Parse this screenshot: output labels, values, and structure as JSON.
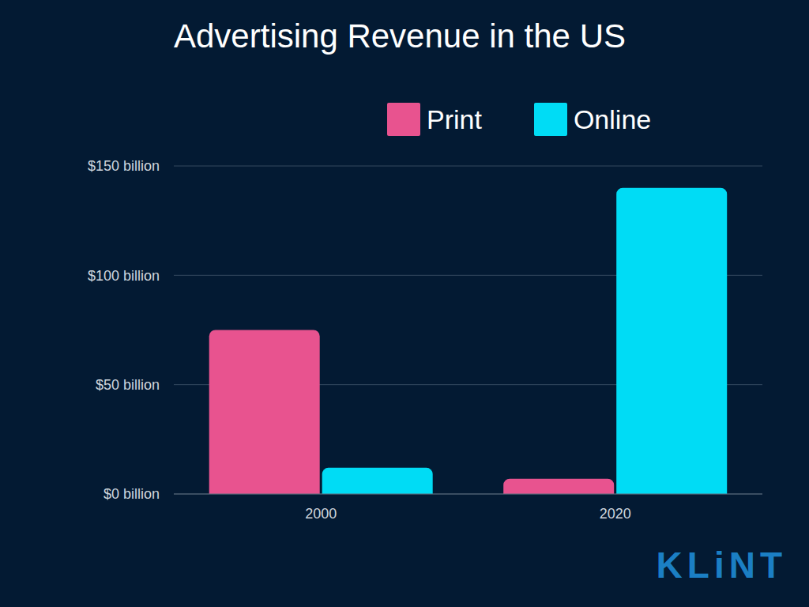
{
  "chart_data": {
    "type": "bar",
    "title": "Advertising Revenue in the US",
    "categories": [
      "2000",
      "2020"
    ],
    "series": [
      {
        "name": "Print",
        "color": "#e8538f",
        "values": [
          75,
          7
        ]
      },
      {
        "name": "Online",
        "color": "#00dcf5",
        "values": [
          12,
          140
        ]
      }
    ],
    "ylim": [
      0,
      150
    ],
    "yticks": [
      {
        "value": 0,
        "label": "$0 billion"
      },
      {
        "value": 50,
        "label": "$50 billion"
      },
      {
        "value": 100,
        "label": "$100 billion"
      },
      {
        "value": 150,
        "label": "$150 billion"
      }
    ],
    "grid": true,
    "legend": "top",
    "annotations": [
      "KLiNT"
    ]
  }
}
